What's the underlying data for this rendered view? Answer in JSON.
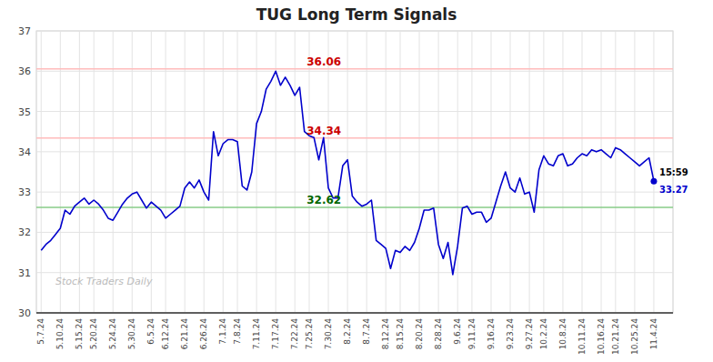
{
  "chart_data": {
    "type": "line",
    "title": "TUG Long Term Signals",
    "color": "#0000cc",
    "grid": true,
    "ylim": [
      30,
      37
    ],
    "yticks": [
      30,
      31,
      32,
      33,
      34,
      35,
      36,
      37
    ],
    "categories": [
      "5.7.24",
      null,
      null,
      null,
      "5.10.24",
      null,
      null,
      null,
      "5.15.24",
      null,
      null,
      "5.20.24",
      null,
      null,
      null,
      "5.24.24",
      null,
      null,
      null,
      "5.30.24",
      null,
      null,
      null,
      "6.5.24",
      null,
      null,
      "6.12.24",
      null,
      null,
      null,
      "6.21.24",
      null,
      null,
      null,
      "6.26.24",
      null,
      null,
      null,
      "7.1.24",
      null,
      null,
      "7.8.24",
      null,
      null,
      null,
      "7.11.24",
      null,
      null,
      null,
      "7.17.24",
      null,
      null,
      null,
      "7.22.24",
      null,
      null,
      "7.25.24",
      null,
      null,
      null,
      "7.30.24",
      null,
      null,
      null,
      "8.2.24",
      null,
      null,
      null,
      "8.7.24",
      null,
      null,
      null,
      "8.12.24",
      null,
      null,
      "8.15.24",
      null,
      null,
      null,
      "8.20.24",
      null,
      null,
      null,
      "8.28.24",
      null,
      null,
      null,
      "9.6.24",
      null,
      null,
      "9.11.24",
      null,
      null,
      null,
      "9.16.24",
      null,
      null,
      null,
      "9.23.24",
      null,
      null,
      null,
      "9.27.24",
      null,
      null,
      "10.2.24",
      null,
      null,
      null,
      "10.8.24",
      null,
      null,
      null,
      "10.11.24",
      null,
      null,
      null,
      "10.16.24",
      null,
      null,
      "10.21.24",
      null,
      null,
      null,
      "10.25.24",
      null,
      null,
      null,
      "11.4.24"
    ],
    "values": [
      31.55,
      31.7,
      31.8,
      31.95,
      32.1,
      32.55,
      32.45,
      32.65,
      32.75,
      32.85,
      32.7,
      32.8,
      32.7,
      32.55,
      32.35,
      32.3,
      32.5,
      32.7,
      32.85,
      32.95,
      33.0,
      32.8,
      32.6,
      32.75,
      32.65,
      32.55,
      32.35,
      32.45,
      32.55,
      32.65,
      33.1,
      33.25,
      33.1,
      33.3,
      33.0,
      32.8,
      34.5,
      33.9,
      34.2,
      34.3,
      34.3,
      34.25,
      33.15,
      33.05,
      33.5,
      34.7,
      35.0,
      35.55,
      35.75,
      36.0,
      35.65,
      35.85,
      35.65,
      35.4,
      35.6,
      34.5,
      34.4,
      34.35,
      33.8,
      34.35,
      33.1,
      32.85,
      32.85,
      33.65,
      33.8,
      32.9,
      32.75,
      32.65,
      32.7,
      32.8,
      31.8,
      31.7,
      31.6,
      31.1,
      31.55,
      31.5,
      31.65,
      31.55,
      31.75,
      32.1,
      32.55,
      32.55,
      32.6,
      31.7,
      31.35,
      31.75,
      30.95,
      31.65,
      32.6,
      32.65,
      32.45,
      32.5,
      32.5,
      32.25,
      32.35,
      32.75,
      33.15,
      33.5,
      33.1,
      33.0,
      33.35,
      32.95,
      33.0,
      32.5,
      33.55,
      33.9,
      33.7,
      33.65,
      33.9,
      33.95,
      33.65,
      33.7,
      33.85,
      33.95,
      33.9,
      34.05,
      34.0,
      34.05,
      33.95,
      33.85,
      34.1,
      34.05,
      33.95,
      33.85,
      33.75,
      33.65,
      33.75,
      33.85,
      33.27
    ],
    "hlines": [
      {
        "value": 36.06,
        "label": "36.06",
        "color": "#ffbbbb",
        "label_color": "#cc0000"
      },
      {
        "value": 34.34,
        "label": "34.34",
        "color": "#ffbbbb",
        "label_color": "#cc0000"
      },
      {
        "value": 32.62,
        "label": "32.62",
        "color": "#88cc88",
        "label_color": "#006600"
      }
    ],
    "last_point": {
      "label": "15:59",
      "value": 33.27,
      "color": "#0000cc"
    },
    "watermark": {
      "text": "Stock Traders Daily",
      "color": "#bbbbbb"
    }
  }
}
